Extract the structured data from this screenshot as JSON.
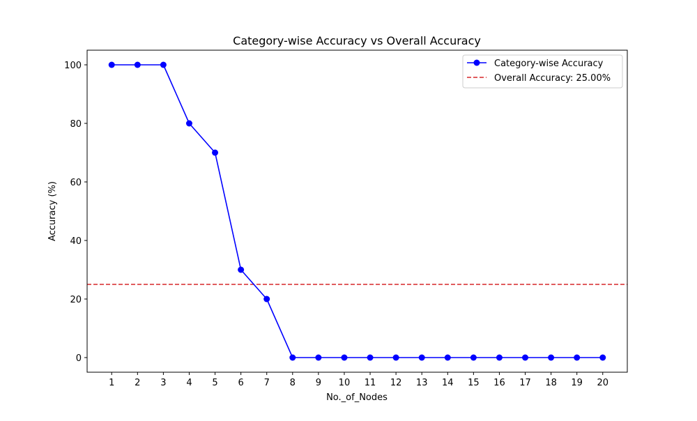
{
  "chart_data": {
    "type": "line",
    "title": "Category-wise Accuracy vs Overall Accuracy",
    "xlabel": "No._of_Nodes",
    "ylabel": "Accuracy (%)",
    "categories": [
      "1",
      "2",
      "3",
      "4",
      "5",
      "6",
      "7",
      "8",
      "9",
      "10",
      "11",
      "12",
      "13",
      "14",
      "15",
      "16",
      "17",
      "18",
      "19",
      "20"
    ],
    "x": [
      1,
      2,
      3,
      4,
      5,
      6,
      7,
      8,
      9,
      10,
      11,
      12,
      13,
      14,
      15,
      16,
      17,
      18,
      19,
      20
    ],
    "series": [
      {
        "name": "Category-wise Accuracy",
        "values": [
          100,
          100,
          100,
          80,
          70,
          30,
          20,
          0,
          0,
          0,
          0,
          0,
          0,
          0,
          0,
          0,
          0,
          0,
          0,
          0
        ],
        "color": "#0000ff",
        "style": "solid",
        "marker": "circle"
      }
    ],
    "reference_lines": [
      {
        "name": "Overall Accuracy: 25.00%",
        "value": 25,
        "orientation": "horizontal",
        "color": "#d62728",
        "style": "dashed"
      }
    ],
    "xlim": [
      0.05,
      20.95
    ],
    "ylim": [
      -5,
      105
    ],
    "yticks": [
      0,
      20,
      40,
      60,
      80,
      100
    ],
    "grid": false,
    "legend_position": "top-right"
  }
}
